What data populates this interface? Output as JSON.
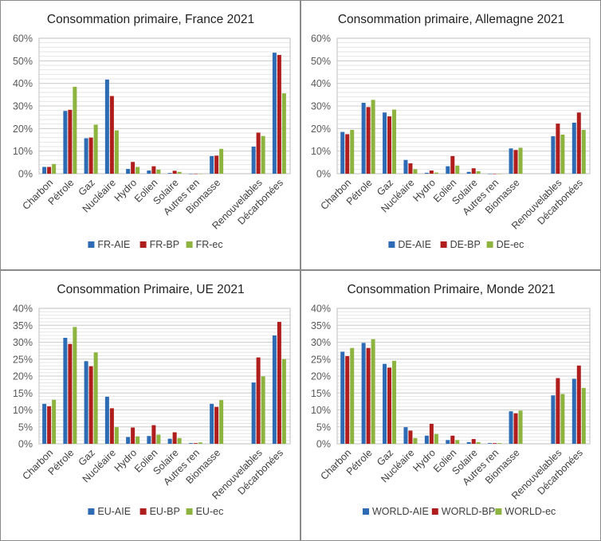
{
  "colors": {
    "AIE": "#2e6bb5",
    "BP": "#b01d1d",
    "ec": "#8db43e"
  },
  "chart_data": [
    {
      "type": "bar",
      "title": "Consommation primaire, France 2021",
      "categories": [
        "Charbon",
        "Pétrole",
        "Gaz",
        "Nucléaire",
        "Hydro",
        "Eolien",
        "Solaire",
        "Autres ren",
        "Biomasse",
        "",
        "Renouvelables",
        "Décarbonées"
      ],
      "ylim": [
        0,
        60
      ],
      "yticks": [
        "0%",
        "10%",
        "20%",
        "30%",
        "40%",
        "50%",
        "60%"
      ],
      "ytick_values": [
        0,
        10,
        20,
        30,
        40,
        50,
        60
      ],
      "grid": true,
      "legend": "bottom",
      "series": [
        {
          "name": "FR-AIE",
          "values": [
            3.0,
            27.8,
            15.7,
            41.7,
            2.1,
            1.4,
            0.3,
            0,
            7.8,
            null,
            12.0,
            53.6
          ]
        },
        {
          "name": "FR-BP",
          "values": [
            3.0,
            28.3,
            16.0,
            34.4,
            5.2,
            3.3,
            1.3,
            0,
            8.0,
            null,
            18.2,
            52.6
          ]
        },
        {
          "name": "FR-ec",
          "values": [
            4.3,
            38.5,
            21.7,
            19.2,
            3.0,
            1.8,
            0.8,
            0,
            11.0,
            null,
            16.7,
            35.6
          ]
        }
      ]
    },
    {
      "type": "bar",
      "title": "Consommation primaire, Allemagne 2021",
      "categories": [
        "Charbon",
        "Pétrole",
        "Gaz",
        "Nucléaire",
        "Hydro",
        "Eolien",
        "Solaire",
        "Autres ren",
        "Biomasse",
        "",
        "Renouvelables",
        "Décarbonées"
      ],
      "ylim": [
        0,
        60
      ],
      "yticks": [
        "0%",
        "10%",
        "20%",
        "30%",
        "40%",
        "50%",
        "60%"
      ],
      "ytick_values": [
        0,
        10,
        20,
        30,
        40,
        50,
        60
      ],
      "grid": true,
      "legend": "bottom",
      "series": [
        {
          "name": "DE-AIE",
          "values": [
            18.5,
            31.4,
            27.1,
            6.1,
            0.4,
            3.3,
            0.8,
            0,
            11.2,
            null,
            16.6,
            22.6
          ]
        },
        {
          "name": "DE-BP",
          "values": [
            17.5,
            29.5,
            25.4,
            4.6,
            1.4,
            7.8,
            2.4,
            0,
            10.5,
            null,
            22.2,
            27.1
          ]
        },
        {
          "name": "DE-ec",
          "values": [
            19.4,
            32.7,
            28.4,
            2.0,
            0.5,
            3.6,
            1.1,
            0,
            11.5,
            null,
            17.3,
            19.4
          ]
        }
      ]
    },
    {
      "type": "bar",
      "title": "Consommation Primaire, UE 2021",
      "categories": [
        "Charbon",
        "Pétrole",
        "Gaz",
        "Nucléaire",
        "Hydro",
        "Eolien",
        "Solaire",
        "Autres ren",
        "Biomasse",
        "",
        "Renouvelables",
        "Décarbonées"
      ],
      "ylim": [
        0,
        40
      ],
      "yticks": [
        "0%",
        "5%",
        "10%",
        "15%",
        "20%",
        "25%",
        "30%",
        "35%",
        "40%"
      ],
      "ytick_values": [
        0,
        5,
        10,
        15,
        20,
        25,
        30,
        35,
        40
      ],
      "grid": true,
      "legend": "bottom",
      "series": [
        {
          "name": "EU-AIE",
          "values": [
            11.8,
            31.3,
            24.4,
            13.9,
            2.0,
            2.3,
            1.5,
            0.2,
            11.8,
            null,
            18.1,
            32.0
          ]
        },
        {
          "name": "EU-BP",
          "values": [
            11.1,
            29.5,
            22.9,
            10.5,
            4.8,
            5.5,
            3.4,
            0.2,
            10.9,
            null,
            25.5,
            36.0
          ]
        },
        {
          "name": "EU-ec",
          "values": [
            13.0,
            34.5,
            27.0,
            4.9,
            2.2,
            2.7,
            1.7,
            0.4,
            12.9,
            null,
            19.9,
            25.0
          ]
        }
      ]
    },
    {
      "type": "bar",
      "title": "Consommation Primaire, Monde 2021",
      "categories": [
        "Charbon",
        "Pétrole",
        "Gaz",
        "Nucléaire",
        "Hydro",
        "Eolien",
        "Solaire",
        "Autres ren",
        "Biomasse",
        "",
        "Renouvelables",
        "Décarbonées"
      ],
      "ylim": [
        0,
        40
      ],
      "yticks": [
        "0%",
        "5%",
        "10%",
        "15%",
        "20%",
        "25%",
        "30%",
        "35%",
        "40%"
      ],
      "ytick_values": [
        0,
        5,
        10,
        15,
        20,
        25,
        30,
        35,
        40
      ],
      "grid": true,
      "legend": "bottom",
      "series": [
        {
          "name": "WORLD-AIE",
          "values": [
            27.2,
            29.8,
            23.6,
            4.9,
            2.4,
            1.1,
            0.5,
            0.2,
            9.6,
            null,
            14.3,
            19.2
          ]
        },
        {
          "name": "WORLD-BP",
          "values": [
            25.9,
            28.3,
            22.5,
            3.9,
            5.9,
            2.4,
            1.4,
            0.2,
            9.0,
            null,
            19.4,
            23.1
          ]
        },
        {
          "name": "WORLD-ec",
          "values": [
            28.3,
            30.9,
            24.5,
            1.7,
            2.9,
            1.1,
            0.5,
            0.2,
            9.8,
            null,
            14.7,
            16.5
          ]
        }
      ]
    }
  ]
}
